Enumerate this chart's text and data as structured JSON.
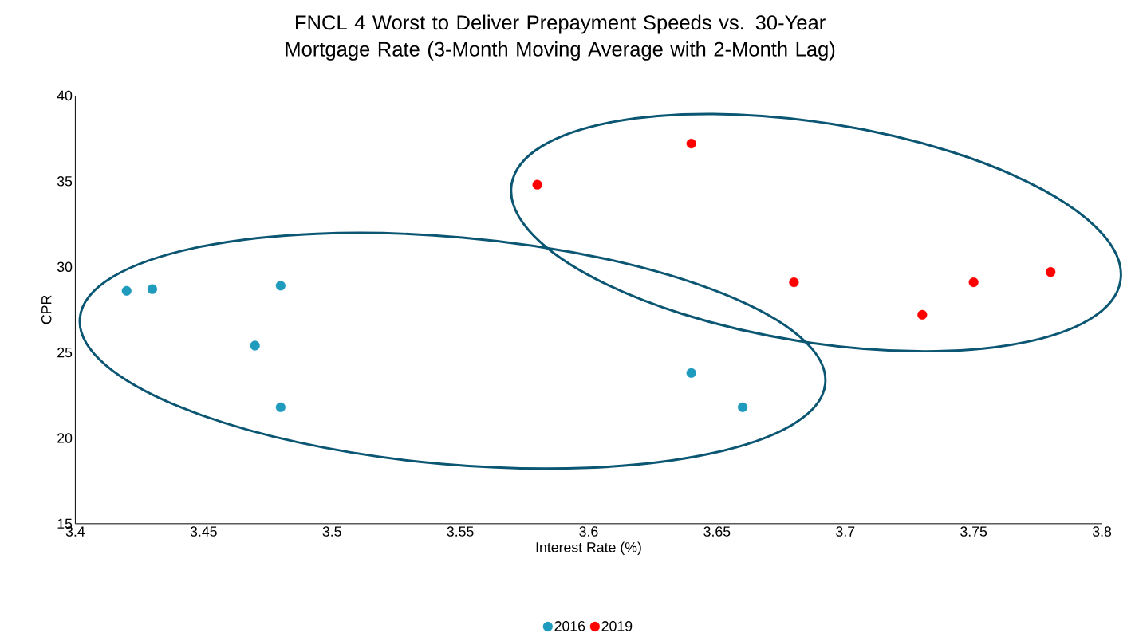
{
  "chart_data": {
    "type": "scatter",
    "title": "FNCL 4 Worst to Deliver Prepayment Speeds vs. 30-Year Mortgage Rate (3-Month Moving Average with 2-Month Lag)",
    "xlabel": "Interest Rate (%)",
    "ylabel": "CPR",
    "xlim": [
      3.4,
      3.8
    ],
    "xticks": [
      3.4,
      3.45,
      3.5,
      3.55,
      3.6,
      3.65,
      3.7,
      3.75,
      3.8
    ],
    "ylim": [
      15,
      40
    ],
    "yticks": [
      15,
      20,
      25,
      30,
      35,
      40
    ],
    "grid": false,
    "legend": "bottom",
    "marker": "circle",
    "series": [
      {
        "name": "2016",
        "color": "#1f9bbd",
        "x": [
          3.42,
          3.43,
          3.48,
          3.47,
          3.48,
          3.64,
          3.66
        ],
        "values": [
          28.6,
          28.7,
          28.9,
          25.4,
          21.8,
          23.8,
          21.8
        ]
      },
      {
        "name": "2019",
        "color": "#ff0000",
        "x": [
          3.58,
          3.64,
          3.68,
          3.73,
          3.75,
          3.78
        ],
        "values": [
          34.8,
          37.2,
          29.1,
          27.2,
          29.1,
          29.7
        ]
      }
    ]
  }
}
